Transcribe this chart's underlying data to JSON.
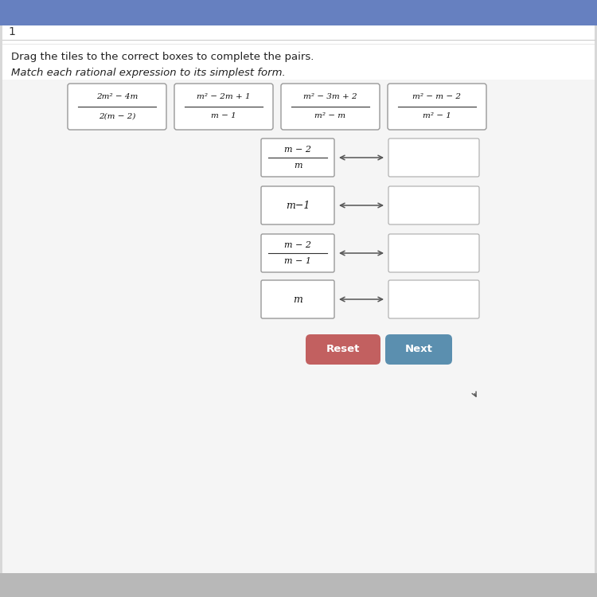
{
  "title_number": "1",
  "instruction1": "Drag the tiles to the correct boxes to complete the pairs.",
  "instruction2": "Match each rational expression to its simplest form.",
  "bg_color": "#d8d8d8",
  "content_bg": "#f5f5f5",
  "top_bar_color": "#6680c0",
  "tiles": [
    {
      "num": "2m² − 4m",
      "den": "2(m − 2)"
    },
    {
      "num": "m² − 2m + 1",
      "den": "m − 1"
    },
    {
      "num": "m² − 3m + 2",
      "den": "m² − m"
    },
    {
      "num": "m² − m − 2",
      "den": "m² − 1"
    }
  ],
  "pair_rows": [
    {
      "is_frac": true,
      "num": "m − 2",
      "den": "m"
    },
    {
      "is_frac": false,
      "expr": "m−1"
    },
    {
      "is_frac": true,
      "num": "m − 2",
      "den": "m − 1"
    },
    {
      "is_frac": false,
      "expr": "m"
    }
  ],
  "reset_color": "#c26060",
  "next_color": "#5b8faf",
  "reset_label": "Reset",
  "next_label": "Next",
  "tile_box_color": "#cccccc",
  "pair_left_box_color": "#bbbbbb",
  "pair_right_box_color": "#cccccc"
}
